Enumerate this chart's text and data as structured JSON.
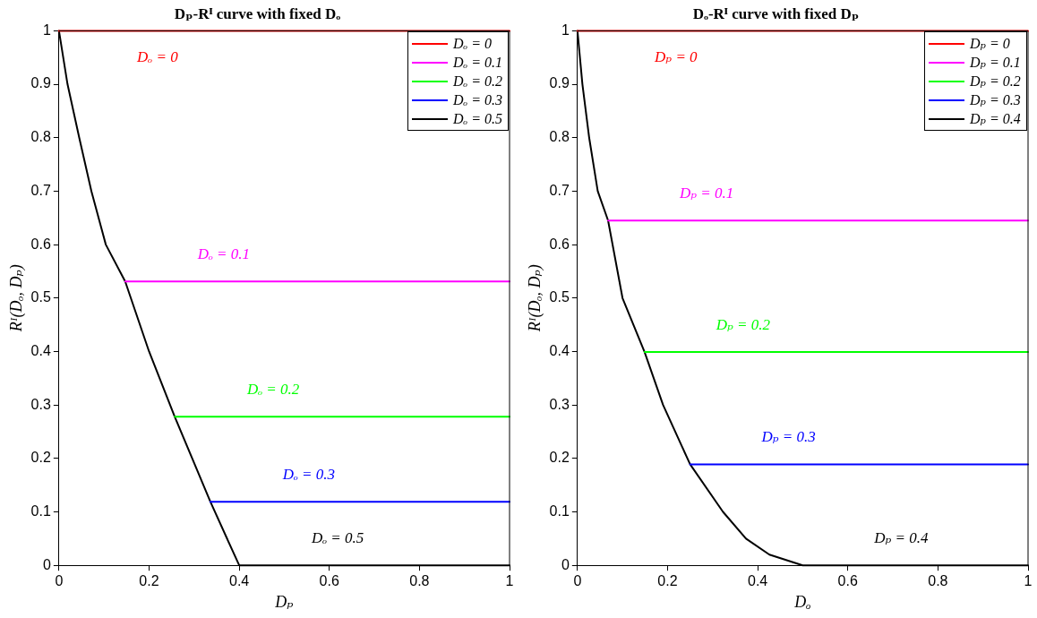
{
  "chart_data": [
    {
      "type": "line",
      "title": "Dₚ-Rᴵ curve with fixed Dₒ",
      "xlabel": "Dₚ",
      "ylabel": "Rᴵ(Dₒ, Dₚ)",
      "xlim": [
        0,
        1
      ],
      "ylim": [
        0,
        1
      ],
      "xticks": [
        0,
        0.2,
        0.4,
        0.6,
        0.8,
        1
      ],
      "yticks": [
        0,
        0.1,
        0.2,
        0.3,
        0.4,
        0.5,
        0.6,
        0.7,
        0.8,
        0.9,
        1
      ],
      "grid": false,
      "legend": "top right",
      "marker": "none",
      "line_style": "solid",
      "series": [
        {
          "name": "Dₒ = 0",
          "color": "#ff0000",
          "x": [
            0,
            1
          ],
          "values": [
            1,
            1
          ]
        },
        {
          "name": "Dₒ = 0.1",
          "color": "#ff00ff",
          "x": [
            0.147,
            1
          ],
          "values": [
            0.531,
            0.531
          ]
        },
        {
          "name": "Dₒ = 0.2",
          "color": "#00ff00",
          "x": [
            0.257,
            1
          ],
          "values": [
            0.278,
            0.278
          ]
        },
        {
          "name": "Dₒ = 0.3",
          "color": "#0000ff",
          "x": [
            0.336,
            1
          ],
          "values": [
            0.119,
            0.119
          ]
        },
        {
          "name": "Dₒ = 0.5",
          "color": "#000000",
          "x": [
            0,
            0.019,
            0.045,
            0.072,
            0.104,
            0.147,
            0.2,
            0.257,
            0.336,
            0.4,
            1
          ],
          "values": [
            1,
            0.9,
            0.8,
            0.7,
            0.6,
            0.531,
            0.4,
            0.278,
            0.119,
            0,
            0
          ]
        }
      ],
      "annotations": [
        "Dₒ = 0",
        "Dₒ = 0.1",
        "Dₒ = 0.2",
        "Dₒ = 0.3",
        "Dₒ = 0.5"
      ]
    },
    {
      "type": "line",
      "title": "Dₒ-Rᴵ curve with fixed Dₚ",
      "xlabel": "Dₒ",
      "ylabel": "Rᴵ(Dₒ, Dₚ)",
      "xlim": [
        0,
        1
      ],
      "ylim": [
        0,
        1
      ],
      "xticks": [
        0,
        0.2,
        0.4,
        0.6,
        0.8,
        1
      ],
      "yticks": [
        0,
        0.1,
        0.2,
        0.3,
        0.4,
        0.5,
        0.6,
        0.7,
        0.8,
        0.9,
        1
      ],
      "grid": false,
      "legend": "top right",
      "marker": "none",
      "line_style": "solid",
      "series": [
        {
          "name": "Dₚ = 0",
          "color": "#ff0000",
          "x": [
            0,
            1
          ],
          "values": [
            1,
            1
          ]
        },
        {
          "name": "Dₚ = 0.1",
          "color": "#ff00ff",
          "x": [
            0.068,
            1
          ],
          "values": [
            0.645,
            0.645
          ]
        },
        {
          "name": "Dₚ = 0.2",
          "color": "#00ff00",
          "x": [
            0.149,
            1
          ],
          "values": [
            0.399,
            0.399
          ]
        },
        {
          "name": "Dₚ = 0.3",
          "color": "#0000ff",
          "x": [
            0.25,
            1
          ],
          "values": [
            0.189,
            0.189
          ]
        },
        {
          "name": "Dₚ = 0.4",
          "color": "#000000",
          "x": [
            0,
            0.011,
            0.026,
            0.045,
            0.068,
            0.1,
            0.149,
            0.19,
            0.25,
            0.323,
            0.374,
            0.426,
            0.5,
            1
          ],
          "values": [
            1,
            0.9,
            0.8,
            0.7,
            0.645,
            0.5,
            0.399,
            0.3,
            0.189,
            0.1,
            0.05,
            0.02,
            0,
            0
          ]
        }
      ],
      "annotations": [
        "Dₚ = 0",
        "Dₚ = 0.1",
        "Dₚ = 0.2",
        "Dₚ = 0.3",
        "Dₚ = 0.4"
      ]
    }
  ]
}
